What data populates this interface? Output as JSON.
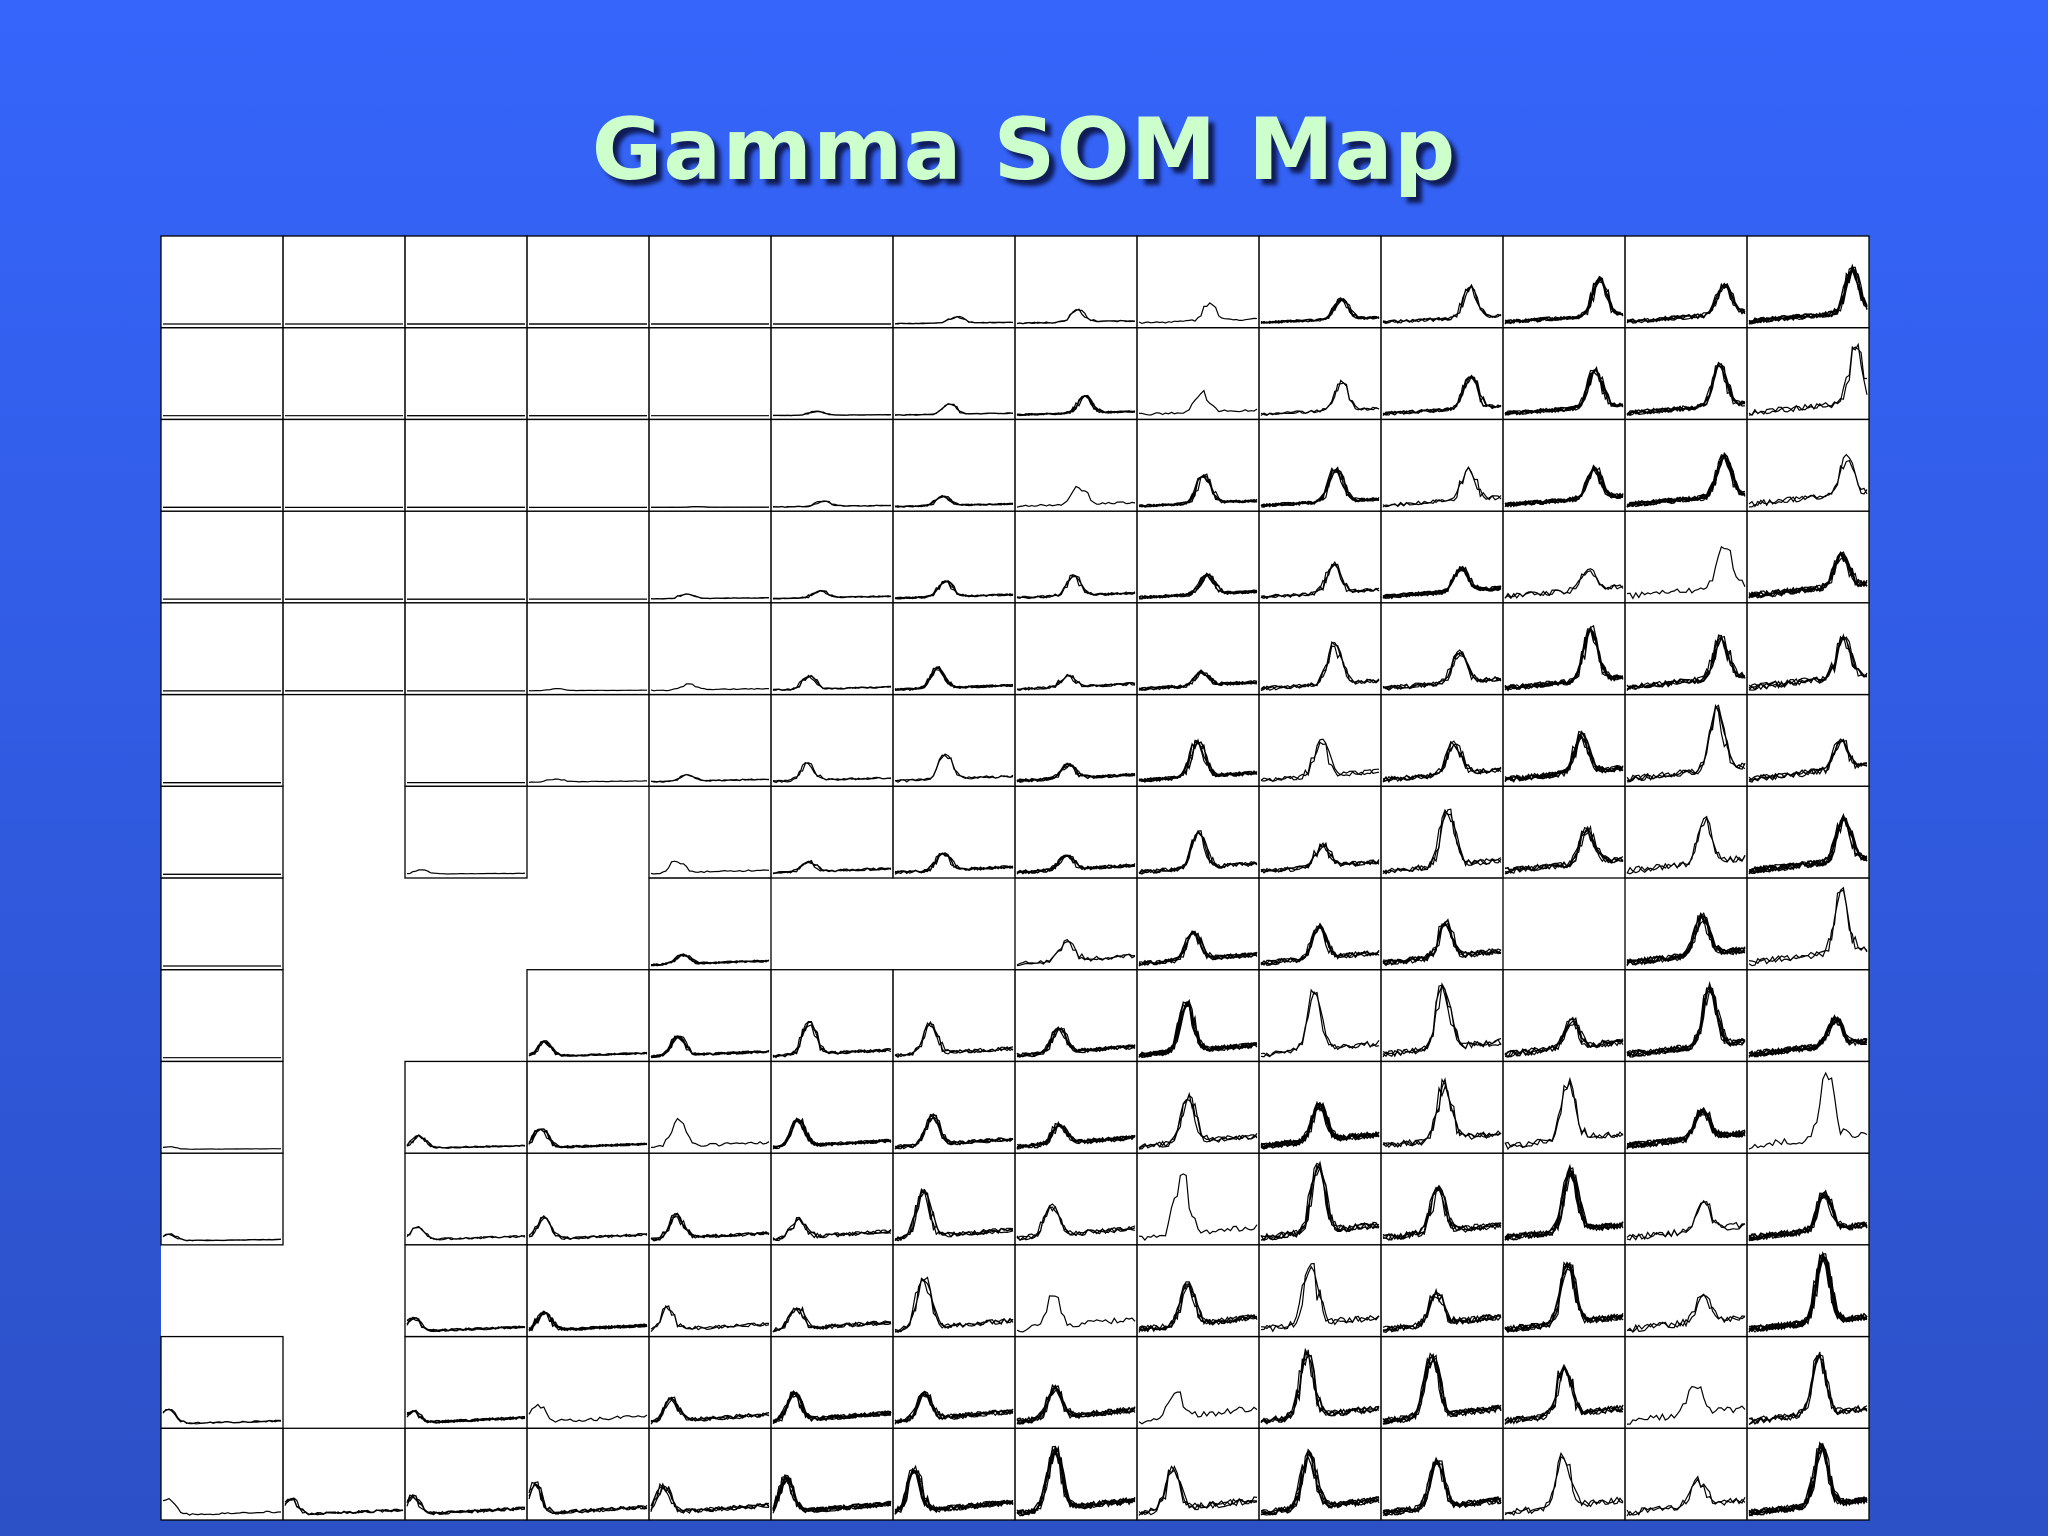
{
  "title": "Gamma SOM Map"
}
